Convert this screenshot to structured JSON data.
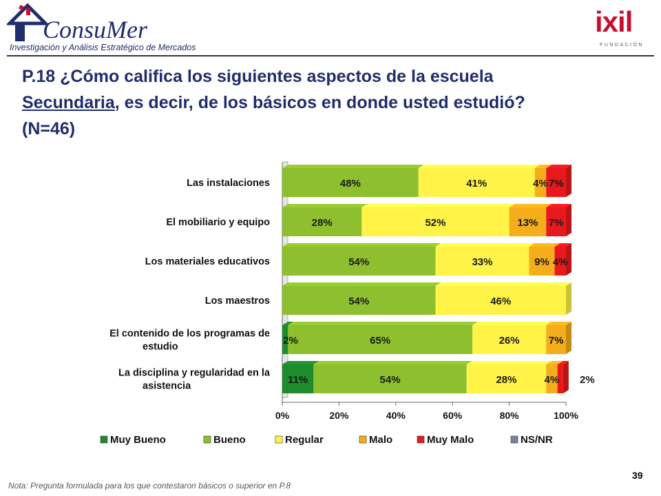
{
  "header": {
    "brand_name": "ConsuMer",
    "brand_tagline": "Investigación y Análisis Estratégico de Mercados",
    "partner_word": "ixil",
    "partner_sub": "FUNDACIÓN"
  },
  "title": {
    "line1": "P.18  ¿Cómo califica los siguientes aspectos de la escuela",
    "line2_underlined": "Secundaria",
    "line2_rest": ", es decir, de los básicos en donde usted estudió?",
    "line3": "(N=46)"
  },
  "footer": {
    "note": "Nota: Pregunta formulada para los que contestaron básicos o superior en P.8",
    "page_number": "39"
  },
  "chart_data": {
    "type": "bar",
    "orientation": "horizontal",
    "stacked": true,
    "percent_stacked": true,
    "categories": [
      "Las instalaciones",
      "El mobiliario y equipo",
      "Los materiales educativos",
      "Los maestros",
      "El contenido de los programas de estudio",
      "La disciplina y regularidad en la asistencia"
    ],
    "category_lines": [
      [
        "Las instalaciones"
      ],
      [
        "El mobiliario y equipo"
      ],
      [
        "Los materiales educativos"
      ],
      [
        "Los maestros"
      ],
      [
        "El contenido de los programas de",
        "estudio"
      ],
      [
        "La disciplina y regularidad en la",
        "asistencia"
      ]
    ],
    "series": [
      {
        "name": "Muy Bueno",
        "color": "#1e8c2c",
        "values": [
          0,
          0,
          0,
          0,
          2,
          11
        ],
        "labels": [
          "",
          "",
          "",
          "",
          "2%",
          "11%"
        ]
      },
      {
        "name": "Bueno",
        "color": "#8dbf2e",
        "values": [
          48,
          28,
          54,
          54,
          65,
          54
        ],
        "labels": [
          "48%",
          "28%",
          "54%",
          "54%",
          "65%",
          "54%"
        ]
      },
      {
        "name": "Regular",
        "color": "#fff347",
        "values": [
          41,
          52,
          33,
          46,
          26,
          28
        ],
        "labels": [
          "41%",
          "52%",
          "33%",
          "46%",
          "26%",
          "28%"
        ]
      },
      {
        "name": "Malo",
        "color": "#f5ad1b",
        "values": [
          4,
          13,
          9,
          0,
          7,
          4
        ],
        "labels": [
          "4%",
          "13%",
          "9%",
          "",
          "7%",
          "4%"
        ]
      },
      {
        "name": "Muy Malo",
        "color": "#e8191c",
        "values": [
          7,
          7,
          4,
          0,
          0,
          2
        ],
        "labels": [
          "7%",
          "7%",
          "4%",
          "",
          "",
          "2%"
        ]
      },
      {
        "name": "NS/NR",
        "color": "#7c8596",
        "values": [
          0,
          0,
          0,
          0,
          0,
          0
        ],
        "labels": [
          "",
          "",
          "",
          "",
          "",
          ""
        ]
      }
    ],
    "xlim": [
      0,
      100
    ],
    "xticks": [
      "0%",
      "20%",
      "40%",
      "60%",
      "80%",
      "100%"
    ],
    "legend_position": "bottom",
    "grid": false
  }
}
